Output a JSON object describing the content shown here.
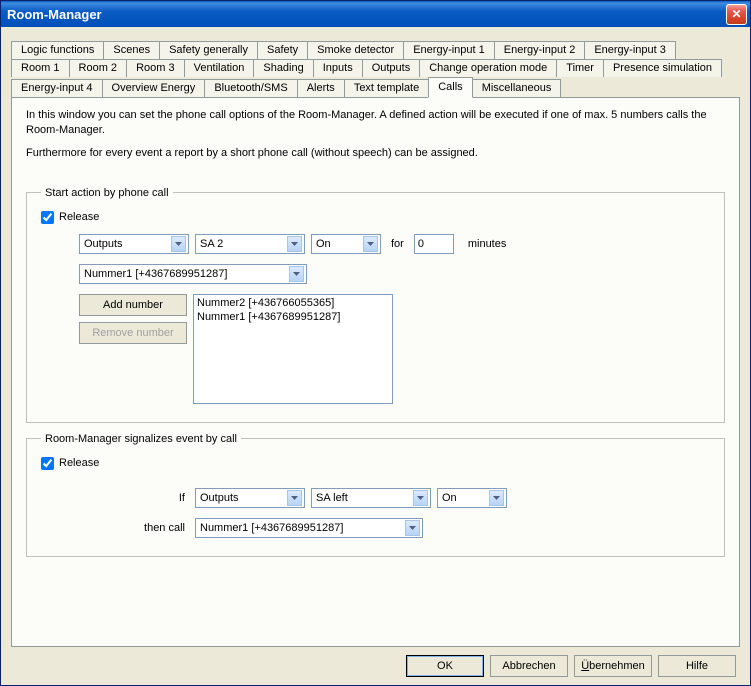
{
  "window": {
    "title": "Room-Manager"
  },
  "tabs": {
    "row1": [
      "Logic functions",
      "Scenes",
      "Safety generally",
      "Safety",
      "Smoke detector",
      "Energy-input 1",
      "Energy-input 2",
      "Energy-input 3"
    ],
    "row2": [
      "Room 1",
      "Room 2",
      "Room 3",
      "Ventilation",
      "Shading",
      "Inputs",
      "Outputs",
      "Change operation mode",
      "Timer",
      "Presence simulation"
    ],
    "row3": [
      "Energy-input 4",
      "Overview Energy",
      "Bluetooth/SMS",
      "Alerts",
      "Text template",
      "Calls",
      "Miscellaneous"
    ],
    "active": "Calls"
  },
  "intro": {
    "p1": "In this window you can set the phone call options of the Room-Manager. A defined action will be executed if one of max. 5 numbers calls the Room-Manager.",
    "p2": "Furthermore for every event a report by a short phone call (without speech) can be assigned."
  },
  "group1": {
    "legend": "Start action by phone call",
    "release_label": "Release",
    "release_checked": true,
    "dd_category": "Outputs",
    "dd_channel": "SA 2",
    "dd_state": "On",
    "for_label": "for",
    "minutes_value": "0",
    "minutes_label": "minutes",
    "number_select": "Nummer1 [+4367689951287]",
    "add_number_label": "Add number",
    "remove_number_label": "Remove number",
    "list_items": [
      "Nummer2 [+436766055365]",
      "Nummer1 [+4367689951287]"
    ]
  },
  "group2": {
    "legend": "Room-Manager signalizes event by call",
    "release_label": "Release",
    "release_checked": true,
    "if_label": "If",
    "dd_category": "Outputs",
    "dd_channel": "SA left",
    "dd_state": "On",
    "thencall_label": "then call",
    "dd_number": "Nummer1 [+4367689951287]"
  },
  "buttons": {
    "ok": "OK",
    "cancel": "Abbrechen",
    "apply": "Übernehmen",
    "help": "Hilfe"
  },
  "colors": {
    "window_bg": "#ece9d8",
    "field_border": "#7f9db9",
    "tab_border": "#919b9c"
  }
}
